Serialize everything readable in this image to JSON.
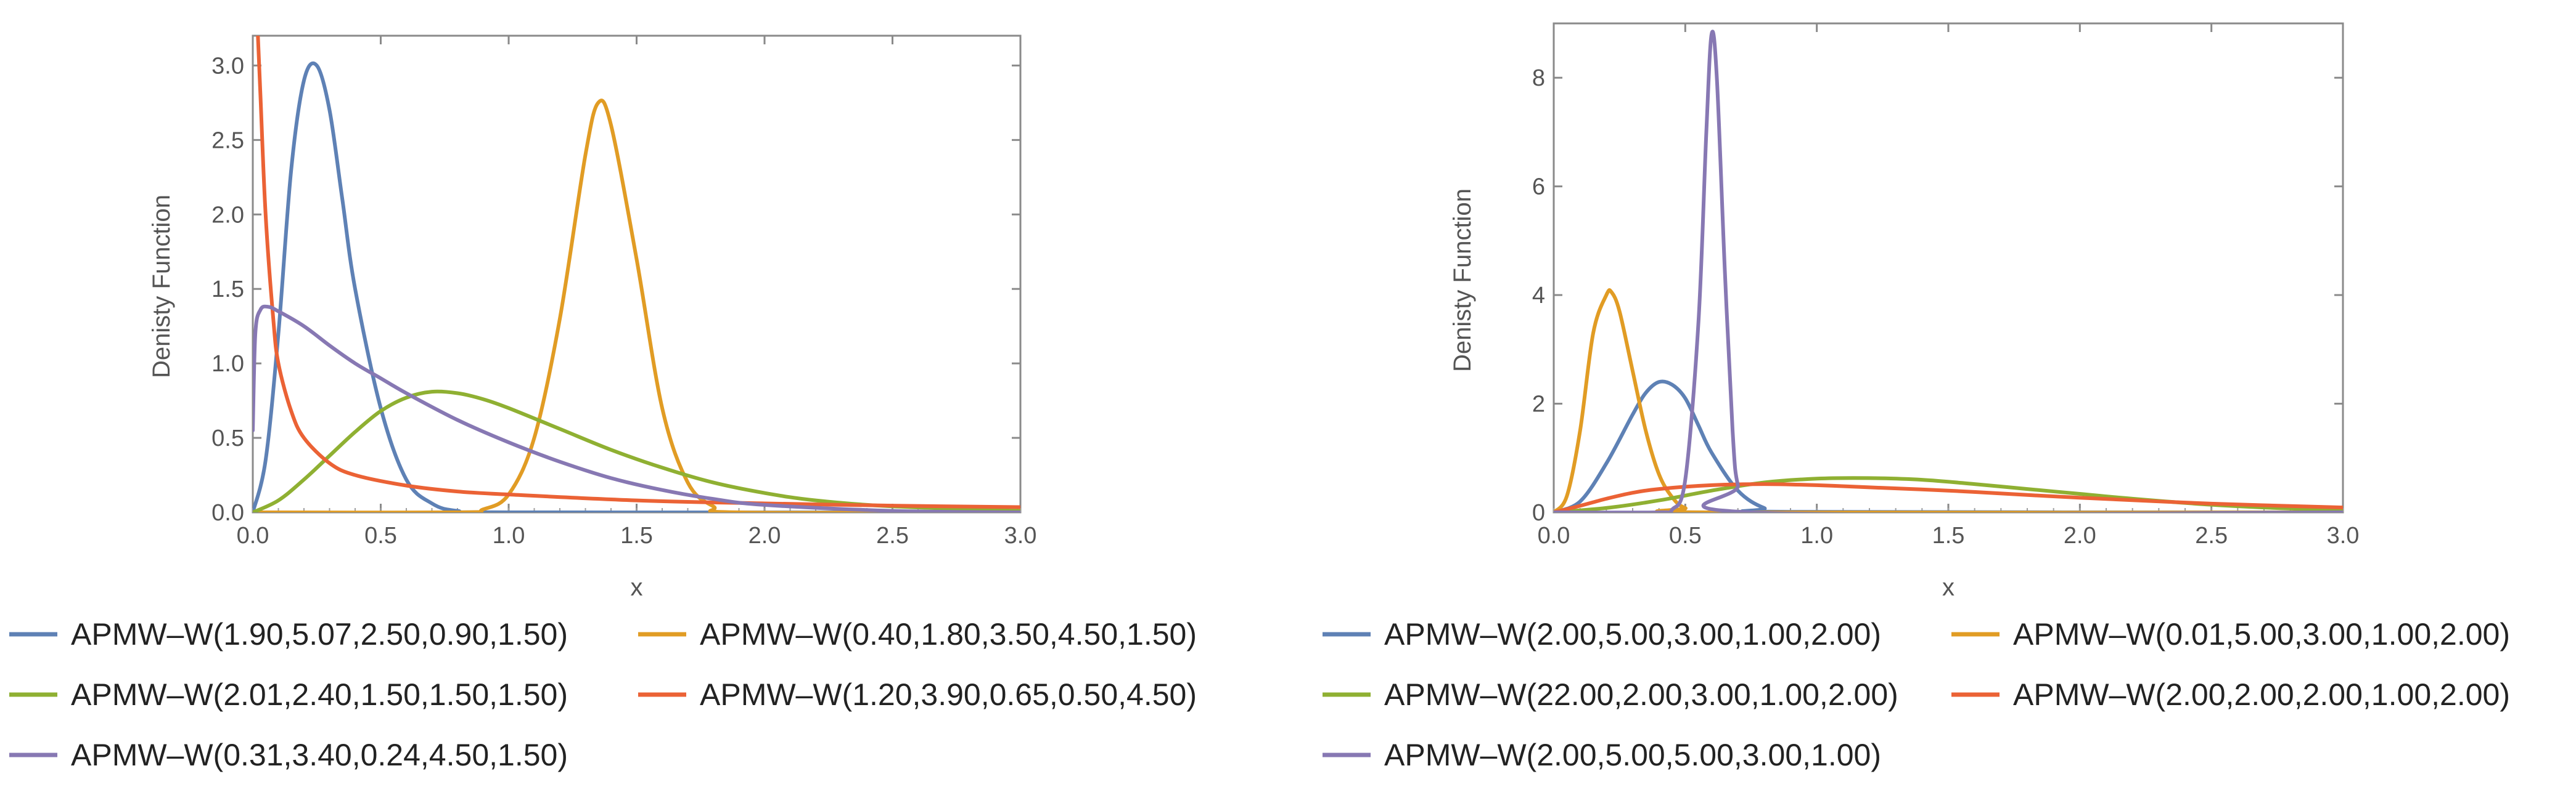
{
  "chart_data": [
    {
      "type": "line",
      "xlabel": "x",
      "ylabel": "Denisty Function",
      "xlim": [
        0,
        3
      ],
      "ylim": [
        0,
        3.2
      ],
      "xticks": [
        "0.0",
        "0.5",
        "1.0",
        "1.5",
        "2.0",
        "2.5",
        "3.0"
      ],
      "yticks": [
        "0.0",
        "0.5",
        "1.0",
        "1.5",
        "2.0",
        "2.5",
        "3.0"
      ],
      "series": [
        {
          "name": "APMW–W(1.90,5.07,2.50,0.90,1.50)",
          "color": "#5E81B5",
          "x": [
            0,
            0.05,
            0.1,
            0.15,
            0.2,
            0.25,
            0.3,
            0.35,
            0.4,
            0.5,
            0.6,
            0.7,
            0.8,
            1.0,
            3.0
          ],
          "y": [
            0,
            0.35,
            1.2,
            2.3,
            2.9,
            3.0,
            2.7,
            2.1,
            1.5,
            0.7,
            0.22,
            0.06,
            0.01,
            0,
            0
          ]
        },
        {
          "name": "APMW–W(0.40,1.80,3.50,4.50,1.50)",
          "color": "#E19C24",
          "x": [
            0,
            0.8,
            0.9,
            1.0,
            1.1,
            1.2,
            1.3,
            1.35,
            1.4,
            1.5,
            1.6,
            1.7,
            1.8,
            1.9,
            3.0
          ],
          "y": [
            0,
            0,
            0.02,
            0.12,
            0.5,
            1.3,
            2.4,
            2.75,
            2.6,
            1.7,
            0.7,
            0.2,
            0.04,
            0,
            0
          ]
        },
        {
          "name": "APMW–W(2.01,2.40,1.50,1.50,1.50)",
          "color": "#8FB032",
          "x": [
            0,
            0.1,
            0.2,
            0.3,
            0.4,
            0.5,
            0.6,
            0.7,
            0.8,
            0.9,
            1.0,
            1.2,
            1.4,
            1.6,
            1.8,
            2.0,
            2.2,
            2.5,
            3.0
          ],
          "y": [
            0,
            0.08,
            0.22,
            0.38,
            0.54,
            0.68,
            0.77,
            0.81,
            0.8,
            0.76,
            0.7,
            0.56,
            0.42,
            0.3,
            0.2,
            0.13,
            0.08,
            0.04,
            0.01
          ]
        },
        {
          "name": "APMW–W(1.20,3.90,0.65,0.50,4.50)",
          "color": "#EB6235",
          "x": [
            0.02,
            0.03,
            0.05,
            0.08,
            0.1,
            0.15,
            0.2,
            0.3,
            0.4,
            0.6,
            0.8,
            1.0,
            1.5,
            2.0,
            2.5,
            3.0
          ],
          "y": [
            3.2,
            2.8,
            2.0,
            1.3,
            1.0,
            0.68,
            0.5,
            0.33,
            0.25,
            0.18,
            0.14,
            0.12,
            0.08,
            0.06,
            0.045,
            0.035
          ]
        },
        {
          "name": "APMW–W(0.31,3.40,0.24,4.50,1.50)",
          "color": "#8778B3",
          "x": [
            0,
            0.01,
            0.03,
            0.06,
            0.1,
            0.2,
            0.3,
            0.4,
            0.5,
            0.6,
            0.8,
            1.0,
            1.2,
            1.4,
            1.6,
            1.8,
            2.0,
            2.5,
            3.0
          ],
          "y": [
            0.55,
            1.2,
            1.36,
            1.38,
            1.35,
            1.25,
            1.12,
            1.0,
            0.9,
            0.8,
            0.62,
            0.47,
            0.34,
            0.23,
            0.15,
            0.09,
            0.05,
            0.01,
            0
          ]
        }
      ]
    },
    {
      "type": "line",
      "xlabel": "x",
      "ylabel": "Denisty Function",
      "xlim": [
        0,
        3
      ],
      "ylim": [
        0,
        9
      ],
      "xticks": [
        "0.0",
        "0.5",
        "1.0",
        "1.5",
        "2.0",
        "2.5",
        "3.0"
      ],
      "yticks": [
        "0",
        "2",
        "4",
        "6",
        "8"
      ],
      "series": [
        {
          "name": "APMW–W(2.00,5.00,3.00,1.00,2.00)",
          "color": "#5E81B5",
          "x": [
            0,
            0.1,
            0.2,
            0.3,
            0.35,
            0.4,
            0.45,
            0.5,
            0.55,
            0.6,
            0.7,
            0.8,
            0.9,
            3.0
          ],
          "y": [
            0,
            0.2,
            0.9,
            1.8,
            2.2,
            2.4,
            2.35,
            2.1,
            1.6,
            1.1,
            0.4,
            0.08,
            0.01,
            0
          ]
        },
        {
          "name": "APMW–W(0.01,5.00,3.00,1.00,2.00)",
          "color": "#E19C24",
          "x": [
            0,
            0.05,
            0.1,
            0.15,
            0.2,
            0.22,
            0.25,
            0.3,
            0.35,
            0.4,
            0.45,
            0.5,
            0.6,
            3.0
          ],
          "y": [
            0,
            0.3,
            1.5,
            3.3,
            4.0,
            4.05,
            3.7,
            2.6,
            1.5,
            0.7,
            0.28,
            0.08,
            0,
            0
          ]
        },
        {
          "name": "APMW–W(22.00,2.00,3.00,1.00,2.00)",
          "color": "#8FB032",
          "x": [
            0,
            0.2,
            0.4,
            0.6,
            0.8,
            1.0,
            1.2,
            1.4,
            1.6,
            1.8,
            2.0,
            2.2,
            2.5,
            2.8,
            3.0
          ],
          "y": [
            0,
            0.08,
            0.22,
            0.4,
            0.55,
            0.62,
            0.63,
            0.6,
            0.52,
            0.43,
            0.34,
            0.25,
            0.14,
            0.07,
            0.05
          ]
        },
        {
          "name": "APMW–W(2.00,2.00,2.00,1.00,2.00)",
          "color": "#EB6235",
          "x": [
            0,
            0.1,
            0.2,
            0.3,
            0.4,
            0.6,
            0.8,
            1.0,
            1.2,
            1.5,
            1.8,
            2.0,
            2.5,
            3.0
          ],
          "y": [
            0,
            0.12,
            0.25,
            0.36,
            0.43,
            0.5,
            0.52,
            0.5,
            0.46,
            0.4,
            0.32,
            0.27,
            0.16,
            0.09
          ]
        },
        {
          "name": "APMW–W(2.00,5.00,5.00,3.00,1.00)",
          "color": "#8778B3",
          "x": [
            0,
            0.4,
            0.45,
            0.5,
            0.55,
            0.58,
            0.6,
            0.62,
            0.65,
            0.68,
            0.7,
            0.75,
            3.0
          ],
          "y": [
            0,
            0,
            0.05,
            0.6,
            3.5,
            7.0,
            8.8,
            8.0,
            4.5,
            1.5,
            0.5,
            0,
            0
          ]
        }
      ]
    }
  ]
}
